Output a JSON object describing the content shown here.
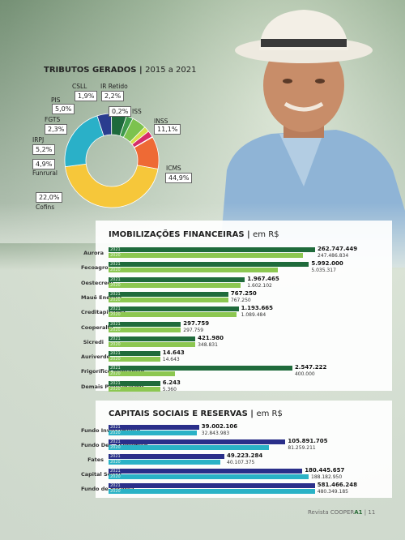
{
  "tributos": {
    "title": "TRIBUTOS GERADOS",
    "subtitle": "2015 a 2021",
    "slices": [
      {
        "name": "ICMS",
        "value": "44,9%",
        "color": "#f6c73a"
      },
      {
        "name": "Cofins",
        "value": "22,0%",
        "color": "#2ab0c8"
      },
      {
        "name": "Funrural",
        "value": "4,9%",
        "color": "#2a3d8f"
      },
      {
        "name": "IRPJ",
        "value": "5,2%",
        "color": "#1e6a3c"
      },
      {
        "name": "FGTS",
        "value": "2,3%",
        "color": "#3e9a4c"
      },
      {
        "name": "PIS",
        "value": "5,0%",
        "color": "#7cc24e"
      },
      {
        "name": "CSLL",
        "value": "1,9%",
        "color": "#d7e04a"
      },
      {
        "name": "IR Retido",
        "value": "2,2%",
        "color": "#d62e6a"
      },
      {
        "name": "ISS",
        "value": "0,2%",
        "color": "#8a3ea8"
      },
      {
        "name": "INSS",
        "value": "11,1%",
        "color": "#ee6a35"
      }
    ],
    "slice_fractions": [
      44.9,
      22.0,
      4.9,
      5.2,
      2.3,
      5.0,
      1.9,
      2.2,
      0.2,
      11.1
    ]
  },
  "imobilizacoes": {
    "title": "IMOBILIZAÇÕES FINANCEIRAS",
    "subtitle": "em R$",
    "rows": [
      {
        "label": "Aurora",
        "y2021": "2021",
        "y2020": "2020",
        "v2021": "262.747.449",
        "v2020": "247.486.834",
        "f2021": 1.0,
        "f2020": 0.94
      },
      {
        "label": "Fecoagro",
        "y2021": "2021",
        "y2020": "2020",
        "v2021": "5.992.000",
        "v2020": "5.035.317",
        "f2021": 0.97,
        "f2020": 0.82
      },
      {
        "label": "Oestecredi",
        "y2021": "2021",
        "y2020": "2020",
        "v2021": "1.967.465",
        "v2020": "1.602.102",
        "f2021": 0.66,
        "f2020": 0.64
      },
      {
        "label": "Mauê Energia",
        "y2021": "2021",
        "y2020": "2020",
        "v2021": "767.250",
        "v2020": "767.250",
        "f2021": 0.58,
        "f2020": 0.58
      },
      {
        "label": "Creditapiranga",
        "y2021": "2021",
        "y2020": "2020",
        "v2021": "1.193.665",
        "v2020": "1.089.484",
        "f2021": 0.63,
        "f2020": 0.62
      },
      {
        "label": "Cooperalfa",
        "y2021": "2021",
        "y2020": "2020",
        "v2021": "297.759",
        "v2020": "297.759",
        "f2021": 0.35,
        "f2020": 0.35
      },
      {
        "label": "Sicredi",
        "y2021": "2021",
        "y2020": "2020",
        "v2021": "421.980",
        "v2020": "348.831",
        "f2021": 0.42,
        "f2020": 0.42
      },
      {
        "label": "Auriverde",
        "y2021": "2021",
        "y2020": "2020",
        "v2021": "14.643",
        "v2020": "14.643",
        "f2021": 0.25,
        "f2020": 0.25
      },
      {
        "label": "Frigorífico Montebelo",
        "y2021": "2021",
        "y2020": "2020",
        "v2021": "2.547.222",
        "v2020": "400.000",
        "f2021": 0.89,
        "f2020": 0.32
      },
      {
        "label": "Demais Participações",
        "y2021": "2021",
        "y2020": "2020",
        "v2021": "6.243",
        "v2020": "5.360",
        "f2021": 0.25,
        "f2020": 0.25
      }
    ]
  },
  "capitais": {
    "title": "CAPITAIS SOCIAIS E RESERVAS",
    "subtitle": "em R$",
    "rows": [
      {
        "label": "Fundo Investimento",
        "y2021": "2021",
        "y2020": "2020",
        "v2021": "39.002.106",
        "v2020": "32.843.983",
        "f2021": 0.43,
        "f2020": 0.42
      },
      {
        "label": "Fundo Des. Econômico",
        "y2021": "2021",
        "y2020": "2020",
        "v2021": "105.891.705",
        "v2020": "81.259.211",
        "f2021": 0.84,
        "f2020": 0.76
      },
      {
        "label": "Fates",
        "y2021": "2021",
        "y2020": "2020",
        "v2021": "49.223.284",
        "v2020": "40.107.375",
        "f2021": 0.55,
        "f2020": 0.53
      },
      {
        "label": "Capital Social",
        "y2021": "2021",
        "y2020": "2020",
        "v2021": "180.445.657",
        "v2020": "188.182.950",
        "f2021": 0.92,
        "f2020": 0.95
      },
      {
        "label": "Fundo de Reserva",
        "y2021": "2021",
        "y2020": "2020",
        "v2021": "581.466.248",
        "v2020": "480.349.185",
        "f2021": 0.98,
        "f2020": 0.98
      }
    ]
  },
  "footer": {
    "magazine": "Revista COOPER",
    "magazine_bold": "A1",
    "page": "11"
  },
  "colors": {
    "imob2021": "#1f6b3b",
    "imob2020": "#8cc751",
    "cap2021": "#2a2f8a",
    "cap2020": "#2ab2c6"
  }
}
